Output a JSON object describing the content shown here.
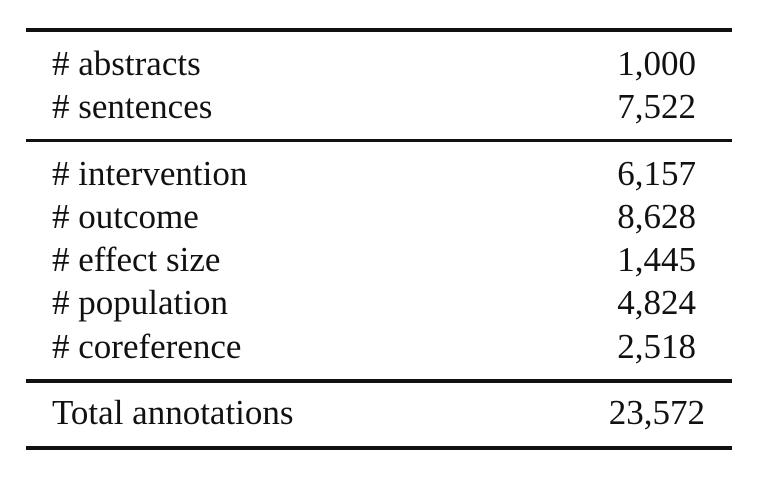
{
  "table": {
    "group1": [
      {
        "label": "# abstracts",
        "value": "1,000"
      },
      {
        "label": "# sentences",
        "value": "7,522"
      }
    ],
    "group2": [
      {
        "label": "# intervention",
        "value": "6,157"
      },
      {
        "label": "# outcome",
        "value": "8,628"
      },
      {
        "label": "# effect size",
        "value": "1,445"
      },
      {
        "label": "# population",
        "value": "4,824"
      },
      {
        "label": "# coreference",
        "value": "2,518"
      }
    ],
    "total": {
      "label": "Total annotations",
      "value": "23,572"
    }
  }
}
